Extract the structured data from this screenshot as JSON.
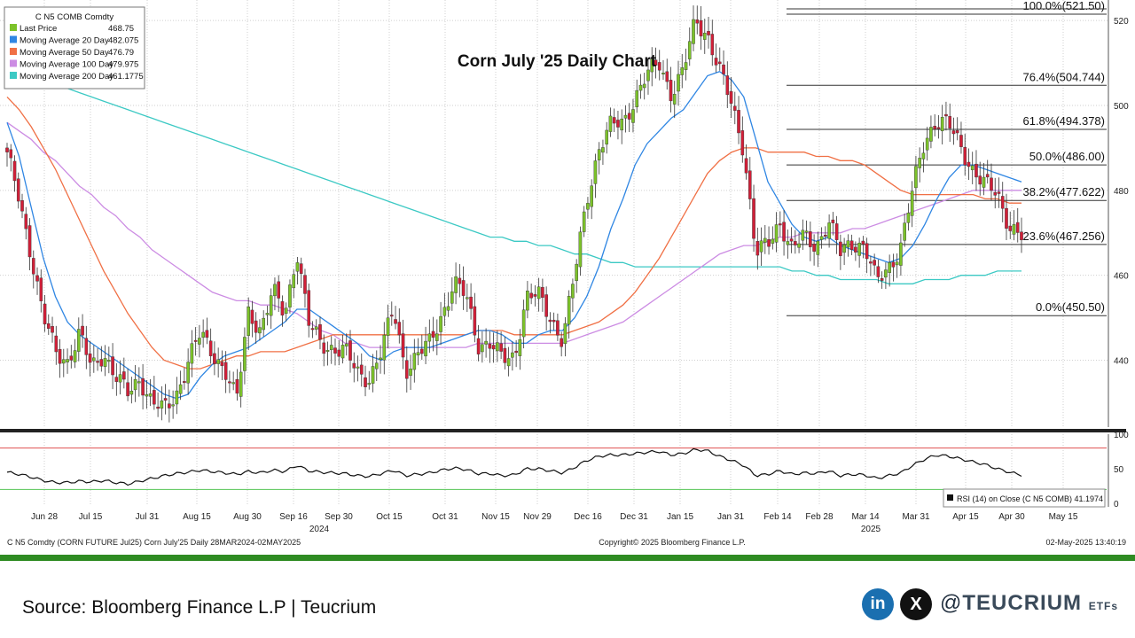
{
  "chart_data": {
    "type": "candlestick",
    "title": "Corn July '25 Daily Chart",
    "ticker_header": "C N5 COMB Comdty",
    "legend": [
      {
        "name": "Last Price",
        "value": "468.75",
        "color": "#7cc22a"
      },
      {
        "name": "Moving Average 20 Day",
        "value": "482.075",
        "color": "#2f86e3"
      },
      {
        "name": "Moving Average 50 Day",
        "value": "476.79",
        "color": "#f07045"
      },
      {
        "name": "Moving Average 100 Day",
        "value": "479.975",
        "color": "#cc8ce3"
      },
      {
        "name": "Moving Average 200 Day",
        "value": "461.1775",
        "color": "#3cc9c4"
      }
    ],
    "price_axis": {
      "min": 420,
      "max": 525,
      "ticks": [
        440,
        460,
        480,
        500,
        520
      ]
    },
    "time_labels": [
      "Jun 28",
      "Jul 15",
      "Jul 31",
      "Aug 15",
      "Aug 30",
      "Sep 16",
      "Sep 30",
      "Oct 15",
      "Oct 31",
      "Nov 15",
      "Nov 29",
      "Dec 16",
      "Dec 31",
      "Jan 15",
      "Jan 31",
      "Feb 14",
      "Feb 28",
      "Mar 14",
      "Mar 31",
      "Apr 15",
      "Apr 30",
      "May 15"
    ],
    "year_labels": [
      "2024",
      "2025"
    ],
    "close_anchors": [
      488,
      478,
      465,
      450,
      442,
      440,
      446,
      438,
      442,
      436,
      432,
      436,
      430,
      428,
      432,
      440,
      446,
      442,
      438,
      430,
      452,
      447,
      456,
      451,
      466,
      448,
      444,
      443,
      442,
      437,
      436,
      442,
      452,
      438,
      441,
      444,
      451,
      458,
      455,
      444,
      444,
      440,
      441,
      455,
      455,
      450,
      445,
      460,
      478,
      490,
      495,
      496,
      502,
      507,
      510,
      503,
      508,
      520,
      517,
      508,
      500,
      490,
      465,
      467,
      473,
      466,
      469,
      467,
      473,
      465,
      468,
      467,
      458,
      462,
      467,
      480,
      492,
      497,
      495,
      490,
      485,
      481,
      479,
      472,
      469
    ],
    "ma20": [
      496,
      488,
      476,
      464,
      455,
      449,
      446,
      444,
      442,
      440,
      438,
      436,
      434,
      432,
      431,
      432,
      436,
      439,
      441,
      442,
      443,
      445,
      447,
      449,
      452,
      452,
      450,
      448,
      446,
      444,
      441,
      440,
      442,
      443,
      443,
      443,
      444,
      445,
      446,
      447,
      447,
      446,
      444,
      444,
      446,
      447,
      447,
      450,
      455,
      462,
      471,
      478,
      486,
      491,
      494,
      497,
      499,
      503,
      507,
      508,
      506,
      502,
      492,
      482,
      477,
      472,
      469,
      468,
      469,
      467,
      466,
      465,
      464,
      463,
      464,
      467,
      472,
      478,
      483,
      486,
      486,
      485,
      484,
      483,
      482
    ],
    "ma50": [
      502,
      499,
      495,
      490,
      485,
      479,
      473,
      467,
      461,
      456,
      451,
      447,
      443,
      440,
      439,
      438,
      438,
      439,
      440,
      441,
      441,
      442,
      442,
      442,
      443,
      444,
      445,
      446,
      446,
      446,
      446,
      446,
      446,
      446,
      446,
      446,
      446,
      446,
      446,
      447,
      447,
      447,
      446,
      446,
      446,
      446,
      446,
      447,
      448,
      449,
      451,
      453,
      456,
      460,
      464,
      469,
      474,
      479,
      484,
      487,
      489,
      490,
      490,
      489,
      489,
      489,
      489,
      488,
      488,
      487,
      487,
      486,
      484,
      482,
      480,
      479,
      479,
      479,
      479,
      479,
      479,
      478,
      478,
      477,
      477
    ],
    "ma100": [
      496,
      494,
      492,
      489,
      487,
      484,
      481,
      479,
      476,
      474,
      471,
      469,
      466,
      464,
      462,
      460,
      458,
      456,
      455,
      454,
      454,
      453,
      453,
      452,
      451,
      449,
      447,
      446,
      444,
      444,
      443,
      443,
      443,
      443,
      443,
      443,
      443,
      443,
      443,
      444,
      444,
      444,
      444,
      444,
      444,
      444,
      444,
      445,
      446,
      447,
      448,
      449,
      451,
      453,
      455,
      457,
      459,
      461,
      463,
      465,
      466,
      467,
      467,
      468,
      469,
      469,
      470,
      470,
      470,
      470,
      471,
      471,
      472,
      473,
      474,
      475,
      476,
      477,
      478,
      479,
      480,
      480,
      480,
      480,
      480
    ],
    "ma200": [
      509,
      508,
      507,
      506,
      505,
      504,
      503,
      502,
      501,
      500,
      499,
      498,
      497,
      496,
      495,
      494,
      493,
      492,
      491,
      490,
      489,
      488,
      487,
      486,
      485,
      484,
      483,
      482,
      481,
      480,
      479,
      478,
      477,
      476,
      475,
      474,
      473,
      472,
      471,
      470,
      469,
      469,
      468,
      468,
      467,
      467,
      466,
      465,
      465,
      464,
      463,
      463,
      462,
      462,
      462,
      462,
      462,
      462,
      462,
      462,
      462,
      462,
      462,
      462,
      462,
      461,
      461,
      460,
      460,
      459,
      459,
      459,
      459,
      458,
      458,
      458,
      459,
      459,
      459,
      460,
      460,
      460,
      461,
      461,
      461
    ],
    "rsi": [
      45,
      42,
      38,
      33,
      30,
      30,
      32,
      31,
      33,
      30,
      28,
      32,
      36,
      40,
      43,
      45,
      48,
      46,
      44,
      42,
      46,
      44,
      48,
      46,
      55,
      47,
      45,
      44,
      43,
      40,
      39,
      43,
      48,
      40,
      42,
      44,
      48,
      51,
      49,
      43,
      43,
      40,
      41,
      50,
      50,
      47,
      44,
      52,
      62,
      68,
      70,
      70,
      72,
      74,
      75,
      70,
      72,
      78,
      76,
      68,
      62,
      55,
      40,
      42,
      47,
      42,
      44,
      43,
      47,
      40,
      42,
      41,
      36,
      40,
      44,
      55,
      64,
      70,
      68,
      64,
      60,
      56,
      50,
      45,
      41
    ],
    "rsi_levels": {
      "upper": 80,
      "lower": 20,
      "ticks": [
        100,
        50,
        0
      ]
    },
    "rsi_label": "RSI (14)  on Close (C N5 COMB) 41.1974",
    "fibonacci": [
      {
        "label": "100.0%(521.50)",
        "price": 521.5
      },
      {
        "label": "76.4%(504.744)",
        "price": 504.744
      },
      {
        "label": "61.8%(494.378)",
        "price": 494.378
      },
      {
        "label": "50.0%(486.00)",
        "price": 486.0
      },
      {
        "label": "38.2%(477.622)",
        "price": 477.622
      },
      {
        "label": "23.6%(467.256)",
        "price": 467.256
      },
      {
        "label": "0.0%(450.50)",
        "price": 450.5
      }
    ],
    "footer": {
      "left": "C N5 Comdty (CORN FUTURE    Jul25) Corn July'25  Daily 28MAR2024-02MAY2025",
      "center": "Copyright© 2025 Bloomberg Finance L.P.",
      "right": "02-May-2025 13:40:19"
    }
  },
  "bottom": {
    "source": "Source: Bloomberg Finance L.P | Teucrium",
    "linkedin": "in",
    "x": "X",
    "handle_prefix": "@",
    "handle_brand": "TEUCRIUM",
    "handle_suffix": "ETFs"
  },
  "colors": {
    "up": "#7cc22a",
    "down": "#d11f38",
    "frame_green": "#2e8b22"
  }
}
